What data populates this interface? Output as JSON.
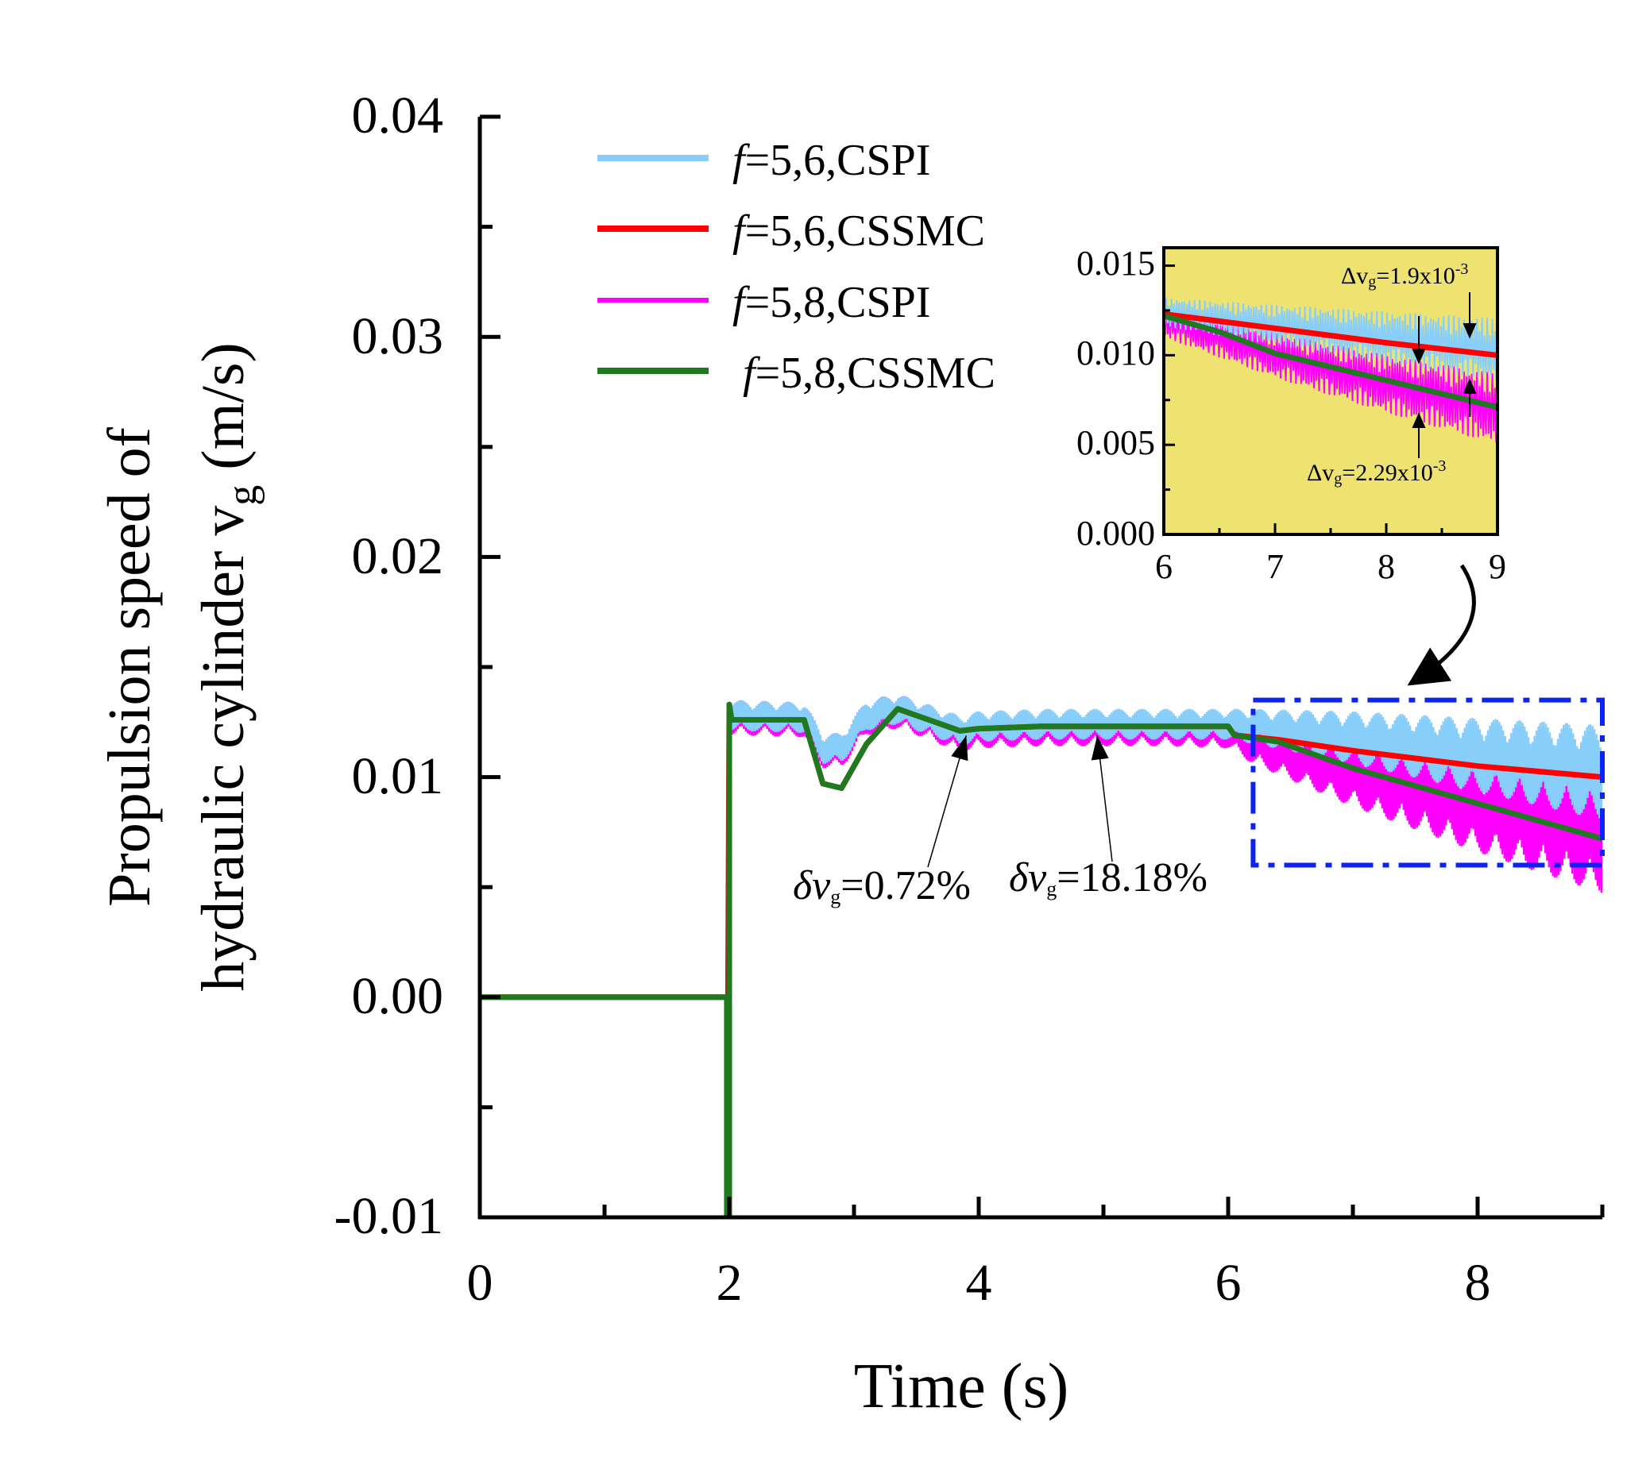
{
  "chart_data": {
    "type": "line",
    "main": {
      "xlabel": "Time (s)",
      "ylabel_line1": "Propulsion speed of",
      "ylabel_line2": "hydraulic cylinder v",
      "ylabel_sub": "g",
      "ylabel_units": " (m/s)",
      "xlim": [
        0,
        9
      ],
      "ylim": [
        -0.01,
        0.04
      ],
      "xticks": [
        0,
        2,
        4,
        6,
        8
      ],
      "xtick_labels": [
        "0",
        "2",
        "4",
        "6",
        "8"
      ],
      "yticks": [
        -0.01,
        0.0,
        0.01,
        0.02,
        0.03,
        0.04
      ],
      "ytick_labels": [
        "-0.01",
        "0.00",
        "0.01",
        "0.02",
        "0.03",
        "0.04"
      ]
    },
    "legend": {
      "placement": "top-left",
      "entries": [
        {
          "prefix": "f",
          "text": "=5,6,CSPI",
          "color": "#87cefa",
          "series": "f56_cspi"
        },
        {
          "prefix": "f",
          "text": "=5,6,CSSMC",
          "color": "#ff0000",
          "series": "f56_cssmc"
        },
        {
          "prefix": "f",
          "text": "=5,8,CSPI",
          "color": "#ff00ff",
          "series": "f58_cspi"
        },
        {
          "prefix": "f",
          "text": "=5,8,CSSMC",
          "color": "#1f7a1f",
          "series": "f58_cssmc"
        }
      ]
    },
    "series": [
      {
        "id": "f58_cspi",
        "name": "f=5,8,CSPI",
        "color": "#ff00ff",
        "noise": 0.0008,
        "x": [
          0,
          1.99,
          2.0,
          2.02,
          2.6,
          2.75,
          2.9,
          3.1,
          3.35,
          3.6,
          3.85,
          4.0,
          4.5,
          5.0,
          5.5,
          6.0,
          6.2,
          7.0,
          8.0,
          9.0
        ],
        "y": [
          0,
          0,
          0.0127,
          0.0127,
          0.0126,
          0.0112,
          0.0112,
          0.0127,
          0.013,
          0.0125,
          0.0119,
          0.0121,
          0.0122,
          0.0122,
          0.0122,
          0.0121,
          0.0115,
          0.01,
          0.0085,
          0.0072
        ]
      },
      {
        "id": "f56_cspi",
        "name": "f=5,6,CSPI",
        "color": "#87cefa",
        "noise": 0.0007,
        "x": [
          0,
          1.99,
          2.0,
          2.02,
          2.6,
          2.75,
          2.9,
          3.1,
          3.35,
          3.6,
          3.85,
          4.0,
          4.5,
          5.0,
          5.5,
          6.0,
          6.2,
          7.0,
          8.0,
          9.0
        ],
        "y": [
          0,
          0,
          0.0128,
          0.0128,
          0.0127,
          0.0113,
          0.0113,
          0.0128,
          0.0131,
          0.0126,
          0.0121,
          0.0123,
          0.0124,
          0.0124,
          0.0124,
          0.0124,
          0.0123,
          0.0118,
          0.011,
          0.0102
        ]
      },
      {
        "id": "f56_cssmc",
        "name": "f=5,6,CSSMC",
        "color": "#ff0000",
        "noise": 0,
        "x": [
          0,
          1.99,
          2.0,
          2.02,
          2.6,
          2.75,
          2.9,
          3.1,
          3.35,
          3.6,
          3.85,
          4.0,
          4.5,
          5.0,
          5.5,
          6.0,
          6.05,
          6.4,
          7.0,
          8.0,
          9.0
        ],
        "y": [
          0,
          0,
          0.0132,
          0.0126,
          0.0126,
          0.0097,
          0.0095,
          0.0115,
          0.0131,
          0.0126,
          0.0121,
          0.0122,
          0.0123,
          0.0123,
          0.0123,
          0.0123,
          0.0119,
          0.0117,
          0.0112,
          0.0105,
          0.01
        ]
      },
      {
        "id": "f58_cssmc",
        "name": "f=5,8,CSSMC",
        "color": "#1f7a1f",
        "noise": 0,
        "x": [
          0,
          1.98,
          1.98,
          2.0,
          2.0,
          2.02,
          2.6,
          2.75,
          2.9,
          3.1,
          3.35,
          3.6,
          3.85,
          4.0,
          4.5,
          5.0,
          5.5,
          6.0,
          6.05,
          6.4,
          7.0,
          8.0,
          9.0
        ],
        "y": [
          0,
          0,
          -0.01,
          -0.01,
          0.0133,
          0.0126,
          0.0126,
          0.0097,
          0.0095,
          0.0115,
          0.0131,
          0.0126,
          0.0121,
          0.0122,
          0.0123,
          0.0123,
          0.0123,
          0.0123,
          0.0119,
          0.0116,
          0.0104,
          0.0088,
          0.0072
        ]
      }
    ],
    "zoom_region": {
      "x": [
        6.2,
        9.0
      ],
      "y": [
        0.006,
        0.0135
      ]
    },
    "inset": {
      "xlim": [
        6,
        9
      ],
      "ylim": [
        0.0,
        0.016
      ],
      "xticks": [
        6,
        7,
        8,
        9
      ],
      "xtick_labels": [
        "6",
        "7",
        "8",
        "9"
      ],
      "yticks": [
        0.0,
        0.005,
        0.01,
        0.015
      ],
      "ytick_labels": [
        "0.000",
        "0.005",
        "0.010",
        "0.015"
      ],
      "background": "#eee370",
      "series": [
        {
          "id": "f58_cspi",
          "color": "#ff00ff",
          "noise": 0.0009,
          "x": [
            6,
            7,
            8,
            9
          ],
          "y": [
            0.0119,
            0.01,
            0.0084,
            0.007
          ]
        },
        {
          "id": "f56_cspi",
          "color": "#87cefa",
          "noise": 0.0008,
          "x": [
            6,
            7,
            8,
            9
          ],
          "y": [
            0.0124,
            0.0117,
            0.011,
            0.0103
          ]
        },
        {
          "id": "f56_cssmc",
          "color": "#ff0000",
          "noise": 0,
          "x": [
            6,
            7,
            8,
            9
          ],
          "y": [
            0.0123,
            0.0115,
            0.0107,
            0.01
          ]
        },
        {
          "id": "f58_cssmc",
          "color": "#1f7a1f",
          "noise": 0,
          "x": [
            6,
            6.5,
            7,
            8,
            9
          ],
          "y": [
            0.0122,
            0.0113,
            0.0101,
            0.0086,
            0.0071
          ]
        }
      ],
      "annotation_top": {
        "prefix": "Δv",
        "sub": "g",
        "text": "=1.9x10",
        "exp": "-3"
      },
      "annotation_bottom": {
        "prefix": "Δv",
        "sub": "g",
        "text": "=2.29x10",
        "exp": "-3"
      }
    },
    "annotations": [
      {
        "prefix": "δv",
        "sub": "g",
        "text": "=0.72%",
        "target_x": 3.9,
        "target_y": 0.0121
      },
      {
        "prefix": "δv",
        "sub": "g",
        "text": "=18.18%",
        "target_x": 4.95,
        "target_y": 0.0121
      }
    ]
  }
}
